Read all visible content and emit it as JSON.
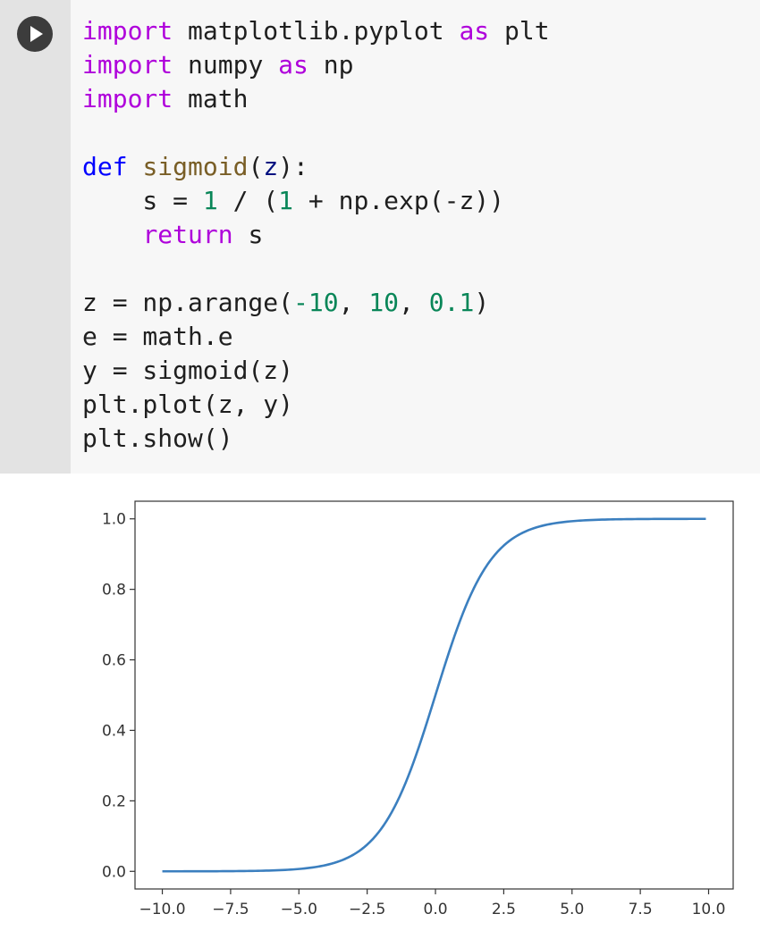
{
  "toolbar": {
    "run_icon": "play-icon"
  },
  "code": {
    "lines": [
      [
        {
          "t": "import",
          "c": "kw"
        },
        {
          "t": " matplotlib.pyplot ",
          "c": "plain"
        },
        {
          "t": "as",
          "c": "kw"
        },
        {
          "t": " plt",
          "c": "plain"
        }
      ],
      [
        {
          "t": "import",
          "c": "kw"
        },
        {
          "t": " numpy ",
          "c": "plain"
        },
        {
          "t": "as",
          "c": "kw"
        },
        {
          "t": " np",
          "c": "plain"
        }
      ],
      [
        {
          "t": "import",
          "c": "kw"
        },
        {
          "t": " math",
          "c": "plain"
        }
      ],
      [],
      [
        {
          "t": "def",
          "c": "def"
        },
        {
          "t": " ",
          "c": "plain"
        },
        {
          "t": "sigmoid",
          "c": "fn"
        },
        {
          "t": "(",
          "c": "plain"
        },
        {
          "t": "z",
          "c": "var"
        },
        {
          "t": "):",
          "c": "plain"
        }
      ],
      [
        {
          "t": "    s = ",
          "c": "plain"
        },
        {
          "t": "1",
          "c": "num"
        },
        {
          "t": " / (",
          "c": "plain"
        },
        {
          "t": "1",
          "c": "num"
        },
        {
          "t": " + np.exp(-z))",
          "c": "plain"
        }
      ],
      [
        {
          "t": "    ",
          "c": "plain"
        },
        {
          "t": "return",
          "c": "kw"
        },
        {
          "t": " s",
          "c": "plain"
        }
      ],
      [],
      [
        {
          "t": "z = np.arange(",
          "c": "plain"
        },
        {
          "t": "-10",
          "c": "num"
        },
        {
          "t": ", ",
          "c": "plain"
        },
        {
          "t": "10",
          "c": "num"
        },
        {
          "t": ", ",
          "c": "plain"
        },
        {
          "t": "0.1",
          "c": "num"
        },
        {
          "t": ")",
          "c": "plain"
        }
      ],
      [
        {
          "t": "e = math.e",
          "c": "plain"
        }
      ],
      [
        {
          "t": "y = sigmoid(z)",
          "c": "plain"
        }
      ],
      [
        {
          "t": "plt.plot(z, y)",
          "c": "plain"
        }
      ],
      [
        {
          "t": "plt.show()",
          "c": "plain"
        }
      ]
    ]
  },
  "colors": {
    "keyword": "#af00db",
    "def_keyword": "#0000ff",
    "function_name": "#795e26",
    "parameter": "#001080",
    "number": "#098658",
    "line": "#3b7fbf"
  },
  "chart_data": {
    "type": "line",
    "title": "",
    "xlabel": "",
    "ylabel": "",
    "x_range": [
      -10,
      9.9
    ],
    "x_step": 0.1,
    "xlim": [
      -11,
      10.9
    ],
    "ylim": [
      -0.05,
      1.05
    ],
    "xticks": [
      -10.0,
      -7.5,
      -5.0,
      -2.5,
      0.0,
      2.5,
      5.0,
      7.5,
      10.0
    ],
    "xtick_labels": [
      "−10.0",
      "−7.5",
      "−5.0",
      "−2.5",
      "0.0",
      "2.5",
      "5.0",
      "7.5",
      "10.0"
    ],
    "yticks": [
      0.0,
      0.2,
      0.4,
      0.6,
      0.8,
      1.0
    ],
    "ytick_labels": [
      "0.0",
      "0.2",
      "0.4",
      "0.6",
      "0.8",
      "1.0"
    ],
    "grid": false,
    "series": [
      {
        "function": "sigmoid",
        "x": [
          -10,
          -8,
          -6,
          -5,
          -4,
          -3,
          -2.5,
          -2,
          -1.5,
          -1,
          -0.5,
          0,
          0.5,
          1,
          1.5,
          2,
          2.5,
          3,
          4,
          5,
          6,
          8,
          9.9
        ],
        "y": [
          0.0,
          0.0003,
          0.0025,
          0.0067,
          0.018,
          0.0474,
          0.0759,
          0.1192,
          0.1824,
          0.2689,
          0.3775,
          0.5,
          0.6225,
          0.7311,
          0.8176,
          0.8808,
          0.9241,
          0.9526,
          0.982,
          0.9933,
          0.9975,
          0.9997,
          1.0
        ]
      }
    ]
  }
}
